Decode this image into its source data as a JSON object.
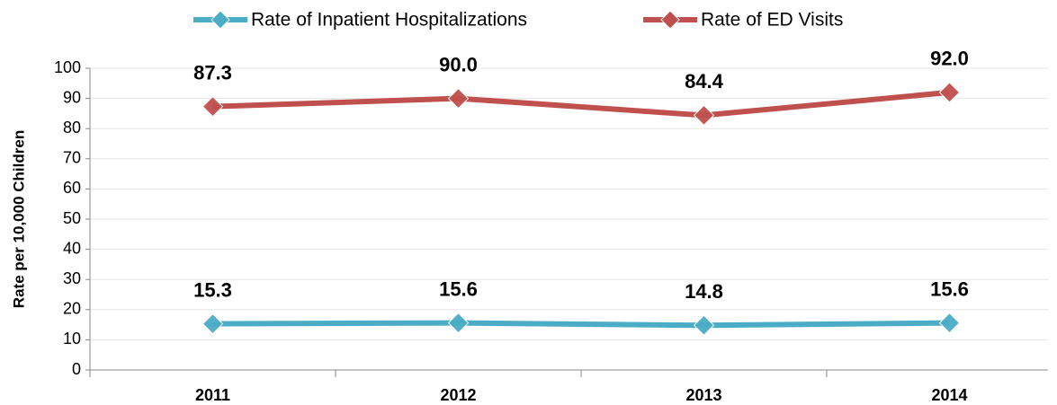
{
  "chart_data": {
    "type": "line",
    "y_axis_label": "Rate per 10,000 Children",
    "categories": [
      "2011",
      "2012",
      "2013",
      "2014"
    ],
    "series": [
      {
        "name": "Rate of Inpatient Hospitalizations",
        "color": "#4bacc6",
        "values": [
          15.3,
          15.6,
          14.8,
          15.6
        ],
        "value_labels": [
          "15.3",
          "15.6",
          "14.8",
          "15.6"
        ]
      },
      {
        "name": "Rate of ED Visits",
        "color": "#c0504d",
        "values": [
          87.3,
          90.0,
          84.4,
          92.0
        ],
        "value_labels": [
          "87.3",
          "90.0",
          "84.4",
          "92.0"
        ]
      }
    ],
    "ylim": [
      0,
      100
    ],
    "yticks": [
      0,
      10,
      20,
      30,
      40,
      50,
      60,
      70,
      80,
      90,
      100
    ],
    "grid": true,
    "legend": "top"
  }
}
